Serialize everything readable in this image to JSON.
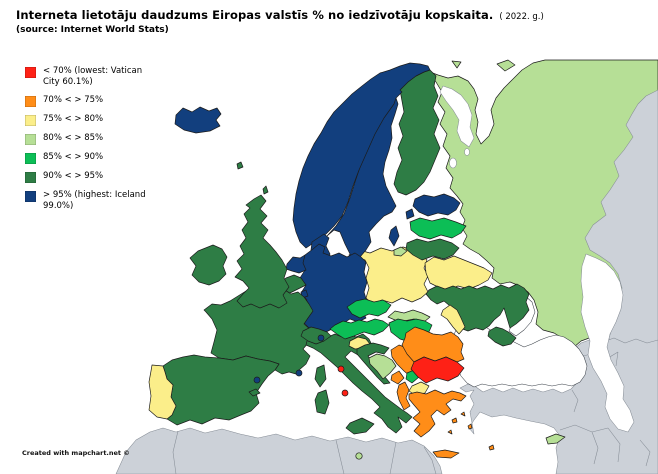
{
  "title": {
    "main": "Interneta lietotāju daudzums Eiropas  valstīs % no iedzīvotāju kopskaita.",
    "year_note": "( 2022. g.)",
    "source": "(source: Internet World Stats)"
  },
  "attribution": "Created with mapchart.net ©",
  "legend": {
    "items": [
      {
        "id": "lt70",
        "label": "< 70% (lowest: Vatican City 60.1%)",
        "color": "#fe2116"
      },
      {
        "id": "70-75",
        "label": "70% < > 75%",
        "color": "#ff8d18"
      },
      {
        "id": "75-80",
        "label": "75% < > 80%",
        "color": "#fbee8a"
      },
      {
        "id": "80-85",
        "label": "80% < > 85%",
        "color": "#b6df96"
      },
      {
        "id": "85-90",
        "label": "85% < > 90%",
        "color": "#0cbe56"
      },
      {
        "id": "90-95",
        "label": "90% < > 95%",
        "color": "#2e7d45"
      },
      {
        "id": "gt95",
        "label": "> 95% (highest: Iceland 99.0%)",
        "color": "#123f7e"
      }
    ]
  },
  "map": {
    "sea_color": "#ffffff",
    "no_data_color": "#ccd1d8",
    "countries": {
      "iceland": "gt95",
      "norway": "gt95",
      "sweden": "gt95",
      "denmark": "gt95",
      "estonia": "gt95",
      "germany": "gt95",
      "netherlands": "gt95",
      "luxembourg": "gt95",
      "andorra": "gt95",
      "monaco": "gt95",
      "liechtenstein": "gt95",
      "united-kingdom": "90-95",
      "ireland": "90-95",
      "france": "90-95",
      "belgium": "90-95",
      "switzerland": "90-95",
      "spain": "90-95",
      "italy": "90-95",
      "croatia": "90-95",
      "finland": "90-95",
      "lithuania": "90-95",
      "ukraine": "90-95",
      "faroe-islands": "90-95",
      "latvia": "85-90",
      "czechia": "85-90",
      "austria": "85-90",
      "hungary": "85-90",
      "kosovo": "85-90",
      "russia": "80-85",
      "slovakia": "80-85",
      "bosnia-and-herzegovina": "80-85",
      "cyprus": "80-85",
      "malta": "80-85",
      "poland": "75-80",
      "belarus": "75-80",
      "portugal": "75-80",
      "slovenia": "75-80",
      "moldova": "75-80",
      "north-macedonia": "75-80",
      "romania": "70-75",
      "serbia": "70-75",
      "montenegro": "70-75",
      "albania": "70-75",
      "greece": "70-75",
      "bulgaria": "lt70",
      "vatican-city": "lt70",
      "san-marino": "lt70"
    }
  }
}
